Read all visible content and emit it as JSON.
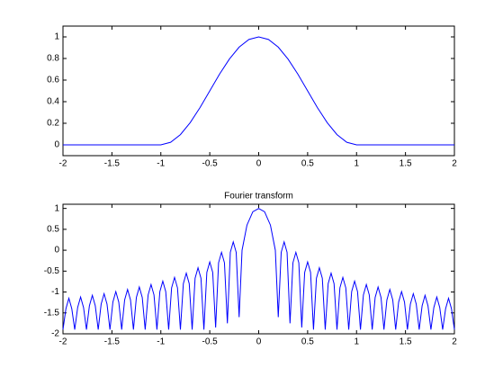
{
  "chart_data": [
    {
      "type": "line",
      "x": [
        -2,
        -1,
        -0.9,
        -0.8,
        -0.7,
        -0.6,
        -0.5,
        -0.4,
        -0.3,
        -0.2,
        -0.1,
        0,
        0.1,
        0.2,
        0.3,
        0.4,
        0.5,
        0.6,
        0.7,
        0.8,
        0.9,
        1,
        2
      ],
      "series": [
        {
          "color": "#0000ff",
          "values": [
            0,
            0,
            0.024,
            0.095,
            0.206,
            0.345,
            0.5,
            0.655,
            0.794,
            0.905,
            0.976,
            1,
            0.976,
            0.905,
            0.794,
            0.655,
            0.5,
            0.345,
            0.206,
            0.095,
            0.024,
            0,
            0
          ]
        }
      ],
      "xlim": [
        -2,
        2
      ],
      "ylim": [
        -0.1,
        1.1
      ],
      "xticks": [
        -2,
        -1.5,
        -1,
        -0.5,
        0,
        0.5,
        1,
        1.5,
        2
      ],
      "yticks": [
        0,
        0.2,
        0.4,
        0.6,
        0.8,
        1
      ]
    },
    {
      "type": "line",
      "title": "Fourier transform",
      "x": [
        -2.0,
        -1.97,
        -1.94,
        -1.91,
        -1.88,
        -1.85,
        -1.82,
        -1.79,
        -1.76,
        -1.73,
        -1.7,
        -1.67,
        -1.64,
        -1.61,
        -1.58,
        -1.55,
        -1.52,
        -1.49,
        -1.46,
        -1.43,
        -1.4,
        -1.37,
        -1.34,
        -1.31,
        -1.28,
        -1.25,
        -1.22,
        -1.19,
        -1.16,
        -1.13,
        -1.1,
        -1.07,
        -1.04,
        -1.01,
        -0.98,
        -0.95,
        -0.92,
        -0.89,
        -0.86,
        -0.83,
        -0.8,
        -0.77,
        -0.74,
        -0.71,
        -0.68,
        -0.65,
        -0.62,
        -0.59,
        -0.56,
        -0.53,
        -0.5,
        -0.47,
        -0.44,
        -0.41,
        -0.38,
        -0.35,
        -0.32,
        -0.29,
        -0.26,
        -0.23,
        -0.2,
        -0.17,
        -0.12,
        -0.06,
        0,
        0.06,
        0.12,
        0.17,
        0.2,
        0.23,
        0.26,
        0.29,
        0.32,
        0.35,
        0.38,
        0.41,
        0.44,
        0.47,
        0.5,
        0.53,
        0.56,
        0.59,
        0.62,
        0.65,
        0.68,
        0.71,
        0.74,
        0.77,
        0.8,
        0.83,
        0.86,
        0.89,
        0.92,
        0.95,
        0.98,
        1.01,
        1.04,
        1.07,
        1.1,
        1.13,
        1.16,
        1.19,
        1.22,
        1.25,
        1.28,
        1.31,
        1.34,
        1.37,
        1.4,
        1.43,
        1.46,
        1.49,
        1.52,
        1.55,
        1.58,
        1.61,
        1.64,
        1.67,
        1.7,
        1.73,
        1.76,
        1.79,
        1.82,
        1.85,
        1.88,
        1.91,
        1.94,
        1.97,
        2.0
      ],
      "series": [
        {
          "color": "#0000ff",
          "values": [
            -1.9,
            -1.4,
            -1.15,
            -1.4,
            -1.9,
            -1.37,
            -1.12,
            -1.37,
            -1.9,
            -1.33,
            -1.08,
            -1.33,
            -1.9,
            -1.29,
            -1.04,
            -1.29,
            -1.9,
            -1.24,
            -0.99,
            -1.24,
            -1.9,
            -1.19,
            -0.94,
            -1.19,
            -1.9,
            -1.13,
            -0.88,
            -1.13,
            -1.9,
            -1.07,
            -0.82,
            -1.07,
            -1.9,
            -0.99,
            -0.74,
            -0.99,
            -1.9,
            -0.9,
            -0.65,
            -0.9,
            -1.9,
            -0.8,
            -0.55,
            -0.8,
            -1.9,
            -0.67,
            -0.42,
            -0.67,
            -1.9,
            -0.53,
            -0.28,
            -0.53,
            -1.85,
            -0.3,
            -0.05,
            -0.3,
            -1.75,
            -0.05,
            0.2,
            -0.05,
            -1.6,
            0.0,
            0.6,
            0.92,
            1,
            0.92,
            0.6,
            0.0,
            -1.6,
            -0.05,
            0.2,
            -0.05,
            -1.75,
            -0.3,
            -0.05,
            -0.3,
            -1.85,
            -0.53,
            -0.28,
            -0.53,
            -1.9,
            -0.67,
            -0.42,
            -0.67,
            -1.9,
            -0.8,
            -0.55,
            -0.8,
            -1.9,
            -0.9,
            -0.65,
            -0.9,
            -1.9,
            -0.99,
            -0.74,
            -0.99,
            -1.9,
            -1.07,
            -0.82,
            -1.07,
            -1.9,
            -1.13,
            -0.88,
            -1.13,
            -1.9,
            -1.19,
            -0.94,
            -1.19,
            -1.9,
            -1.24,
            -0.99,
            -1.24,
            -1.9,
            -1.29,
            -1.04,
            -1.29,
            -1.9,
            -1.33,
            -1.08,
            -1.33,
            -1.9,
            -1.37,
            -1.12,
            -1.37,
            -1.9,
            -1.4,
            -1.15,
            -1.4,
            -1.9
          ]
        }
      ],
      "xlim": [
        -2,
        2
      ],
      "ylim": [
        -2,
        1.1
      ],
      "xticks": [
        -2,
        -1.5,
        -1,
        -0.5,
        0,
        0.5,
        1,
        1.5,
        2
      ],
      "yticks": [
        -2,
        -1.5,
        -1,
        -0.5,
        0,
        0.5,
        1
      ]
    }
  ]
}
